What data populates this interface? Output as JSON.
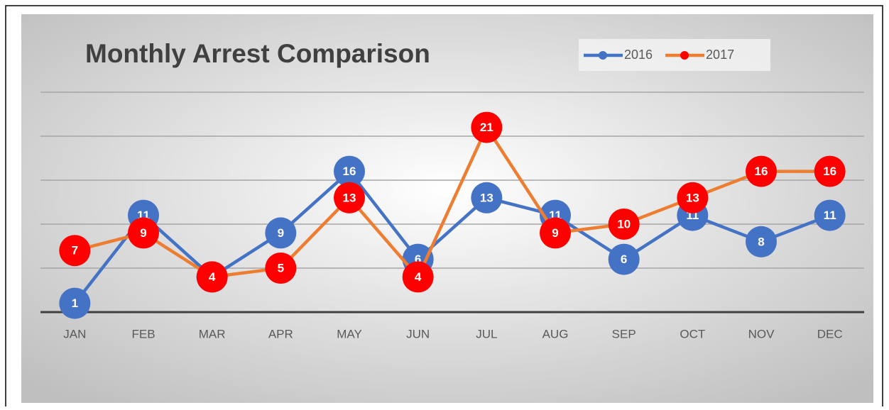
{
  "chart_data": {
    "type": "line",
    "title": "Monthly Arrest Comparison",
    "categories": [
      "JAN",
      "FEB",
      "MAR",
      "APR",
      "MAY",
      "JUN",
      "JUL",
      "AUG",
      "SEP",
      "OCT",
      "NOV",
      "DEC"
    ],
    "series": [
      {
        "name": "2016",
        "color": "#4472c4",
        "marker_color": "#4472c4",
        "values": [
          1,
          11,
          4,
          9,
          16,
          6,
          13,
          11,
          6,
          11,
          8,
          11
        ]
      },
      {
        "name": "2017",
        "color": "#ed7d31",
        "marker_color": "#ff0000",
        "values": [
          7,
          9,
          4,
          5,
          13,
          4,
          21,
          9,
          10,
          13,
          16,
          16
        ]
      }
    ],
    "ylim": [
      0,
      25
    ],
    "yticks": [
      0,
      5,
      10,
      15,
      20,
      25
    ],
    "grid": true,
    "legend": "top-right"
  }
}
